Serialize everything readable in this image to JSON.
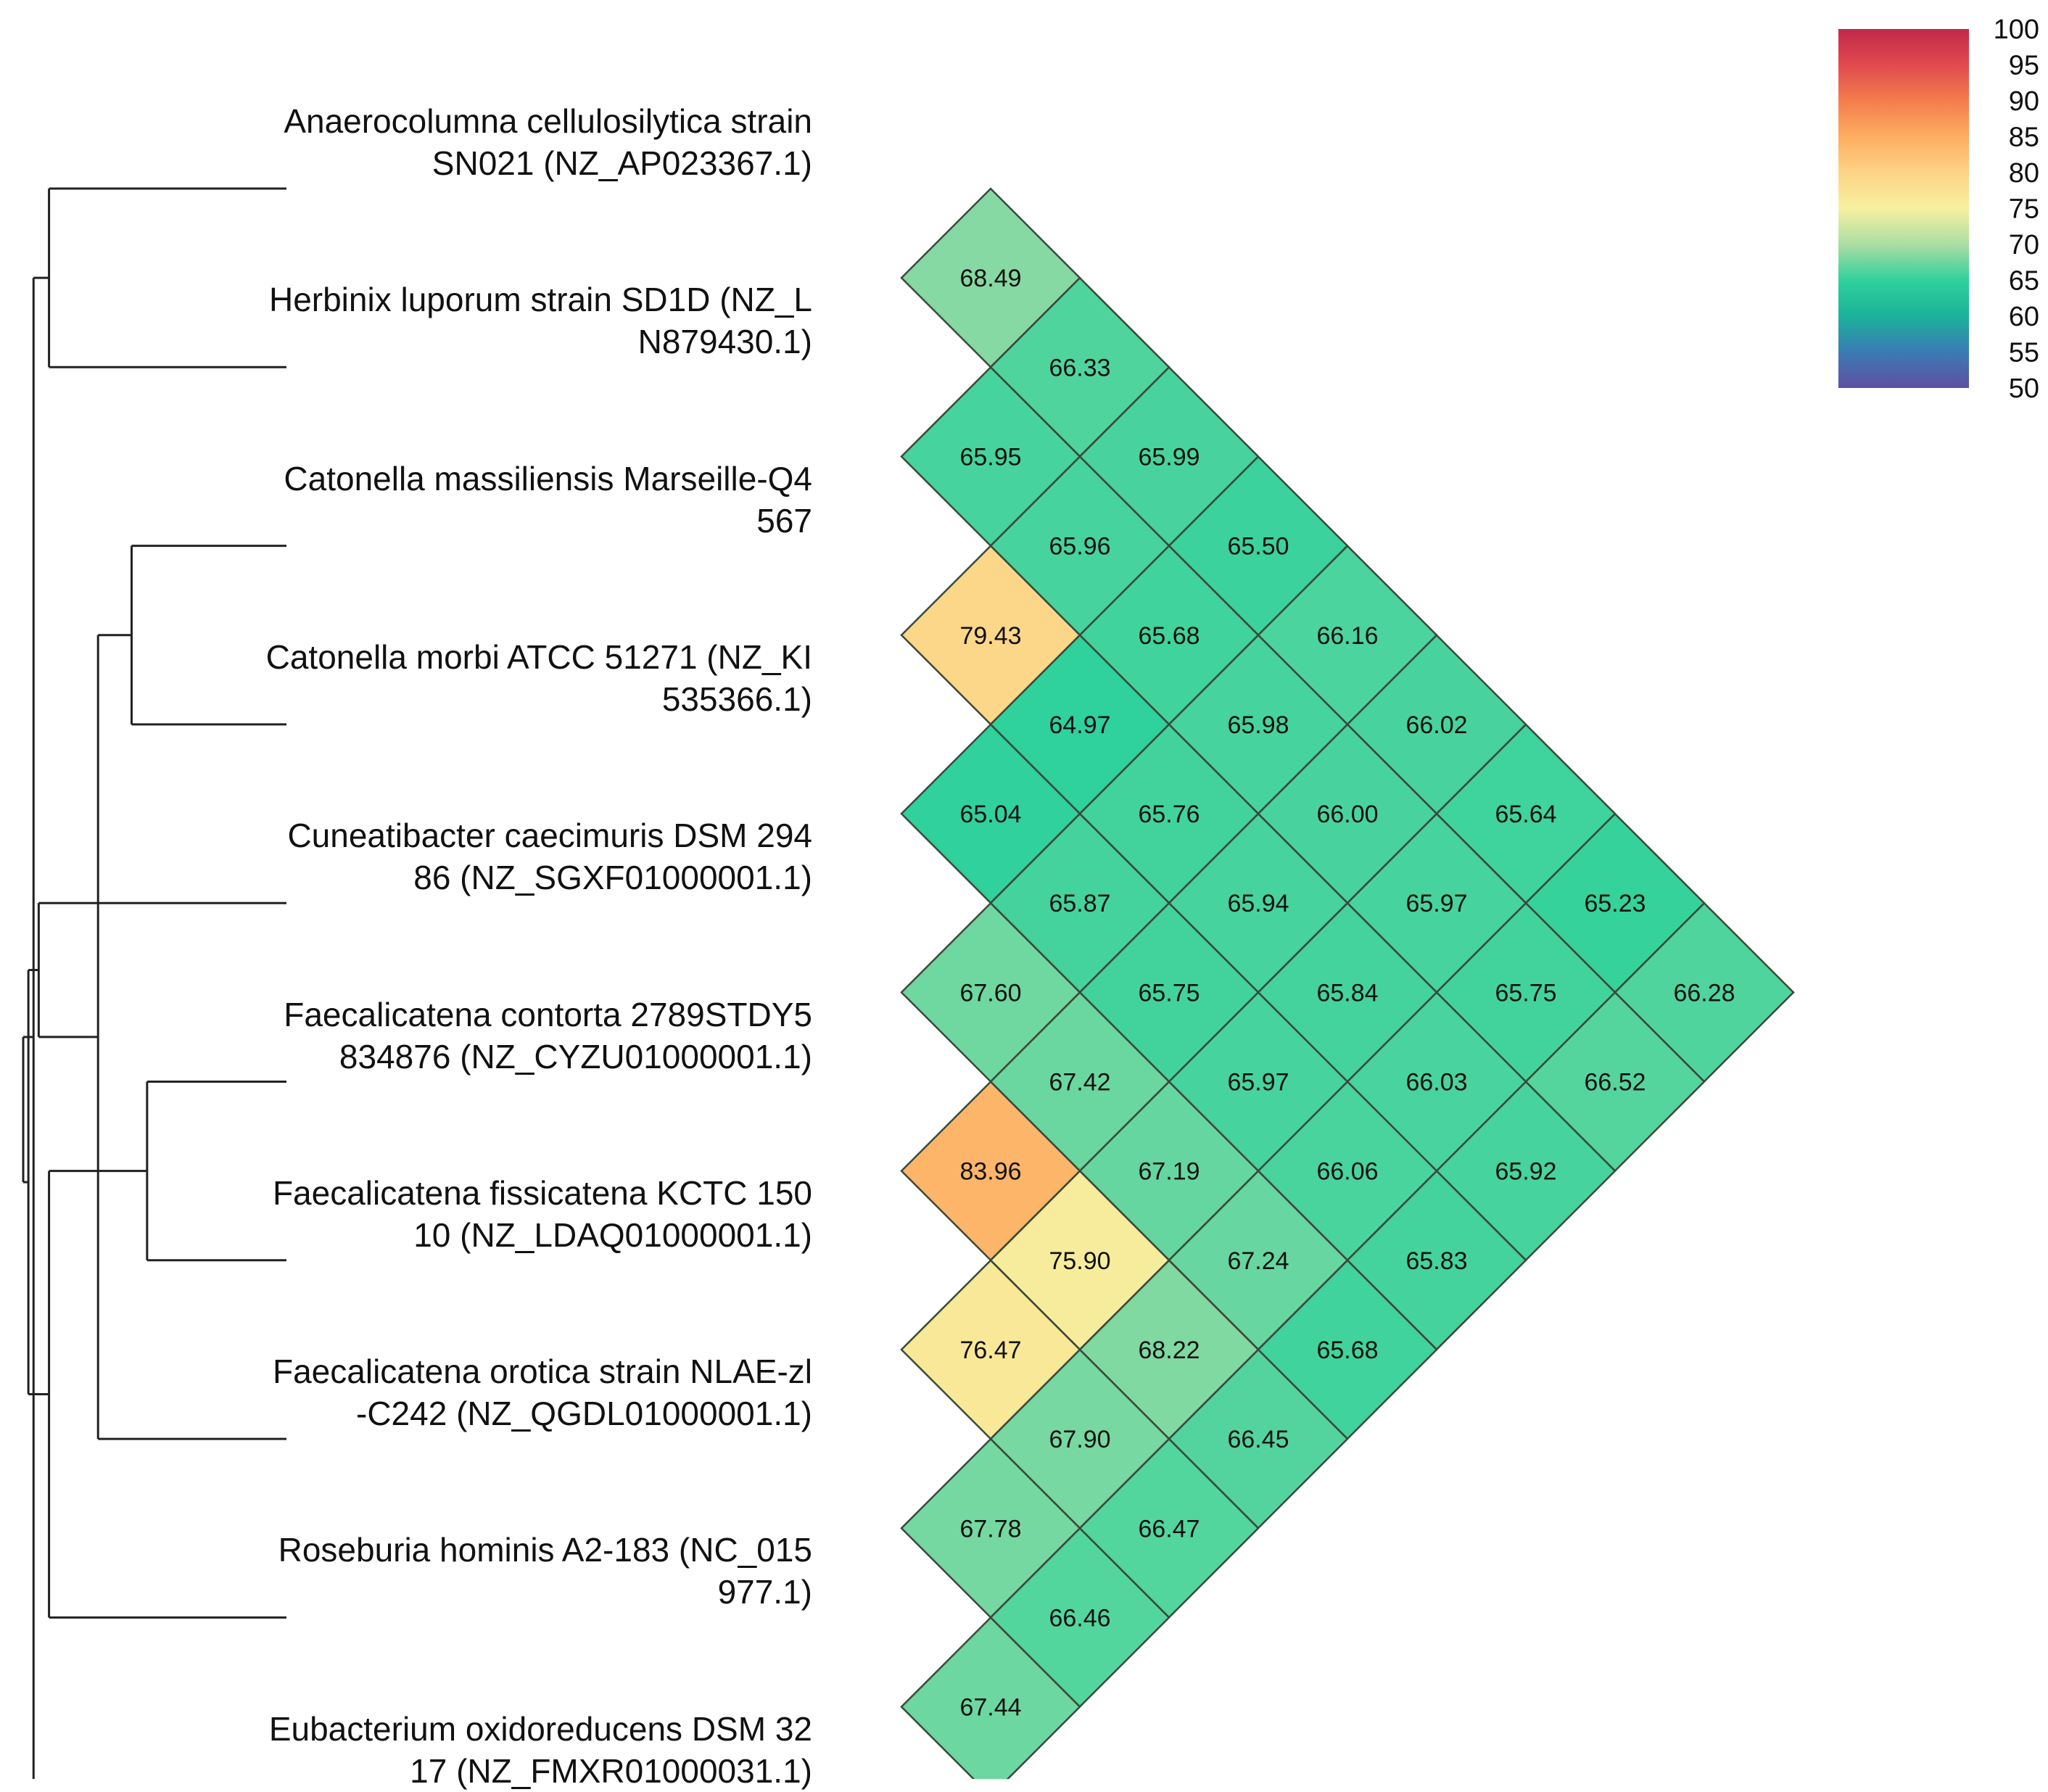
{
  "chart_data": {
    "type": "heatmap",
    "title": "",
    "layout": "triangular pairwise matrix with dendrogram",
    "taxa": [
      {
        "line1": "Anaerocolumna cellulosilytica strain",
        "line2": "SN021 (NZ_AP023367.1)"
      },
      {
        "line1": "Herbinix luporum strain SD1D (NZ_L",
        "line2": "N879430.1)"
      },
      {
        "line1": "Catonella massiliensis Marseille-Q4",
        "line2": "567"
      },
      {
        "line1": "Catonella morbi ATCC 51271 (NZ_KI",
        "line2": "535366.1)"
      },
      {
        "line1": "Cuneatibacter caecimuris DSM 294",
        "line2": "86 (NZ_SGXF01000001.1)"
      },
      {
        "line1": "Faecalicatena contorta 2789STDY5",
        "line2": "834876 (NZ_CYZU01000001.1)"
      },
      {
        "line1": "Faecalicatena fissicatena KCTC 150",
        "line2": "10 (NZ_LDAQ01000001.1)"
      },
      {
        "line1": "Faecalicatena orotica strain NLAE-zl",
        "line2": "-C242 (NZ_QGDL01000001.1)"
      },
      {
        "line1": "Roseburia hominis A2-183 (NC_015",
        "line2": "977.1)"
      },
      {
        "line1": "Eubacterium oxidoreducens DSM 32",
        "line2": "17 (NZ_FMXR01000031.1)"
      }
    ],
    "pairs": [
      {
        "i": 0,
        "j": 1,
        "value": "68.49"
      },
      {
        "i": 0,
        "j": 2,
        "value": "66.33"
      },
      {
        "i": 0,
        "j": 3,
        "value": "65.99"
      },
      {
        "i": 0,
        "j": 4,
        "value": "65.50"
      },
      {
        "i": 0,
        "j": 5,
        "value": "66.16"
      },
      {
        "i": 0,
        "j": 6,
        "value": "66.02"
      },
      {
        "i": 0,
        "j": 7,
        "value": "65.64"
      },
      {
        "i": 0,
        "j": 8,
        "value": "65.23"
      },
      {
        "i": 0,
        "j": 9,
        "value": "66.28"
      },
      {
        "i": 1,
        "j": 2,
        "value": "65.95"
      },
      {
        "i": 1,
        "j": 3,
        "value": "65.96"
      },
      {
        "i": 1,
        "j": 4,
        "value": "65.68"
      },
      {
        "i": 1,
        "j": 5,
        "value": "65.98"
      },
      {
        "i": 1,
        "j": 6,
        "value": "66.00"
      },
      {
        "i": 1,
        "j": 7,
        "value": "65.97"
      },
      {
        "i": 1,
        "j": 8,
        "value": "65.75"
      },
      {
        "i": 1,
        "j": 9,
        "value": "66.52"
      },
      {
        "i": 2,
        "j": 3,
        "value": "79.43"
      },
      {
        "i": 2,
        "j": 4,
        "value": "64.97"
      },
      {
        "i": 2,
        "j": 5,
        "value": "65.76"
      },
      {
        "i": 2,
        "j": 6,
        "value": "65.94"
      },
      {
        "i": 2,
        "j": 7,
        "value": "65.84"
      },
      {
        "i": 2,
        "j": 8,
        "value": "66.03"
      },
      {
        "i": 2,
        "j": 9,
        "value": "65.92"
      },
      {
        "i": 3,
        "j": 4,
        "value": "65.04"
      },
      {
        "i": 3,
        "j": 5,
        "value": "65.87"
      },
      {
        "i": 3,
        "j": 6,
        "value": "65.75"
      },
      {
        "i": 3,
        "j": 7,
        "value": "65.97"
      },
      {
        "i": 3,
        "j": 8,
        "value": "66.06"
      },
      {
        "i": 3,
        "j": 9,
        "value": "65.83"
      },
      {
        "i": 4,
        "j": 5,
        "value": "67.60"
      },
      {
        "i": 4,
        "j": 6,
        "value": "67.42"
      },
      {
        "i": 4,
        "j": 7,
        "value": "67.19"
      },
      {
        "i": 4,
        "j": 8,
        "value": "67.24"
      },
      {
        "i": 4,
        "j": 9,
        "value": "65.68"
      },
      {
        "i": 5,
        "j": 6,
        "value": "83.96"
      },
      {
        "i": 5,
        "j": 7,
        "value": "75.90"
      },
      {
        "i": 5,
        "j": 8,
        "value": "68.22"
      },
      {
        "i": 5,
        "j": 9,
        "value": "66.45"
      },
      {
        "i": 6,
        "j": 7,
        "value": "76.47"
      },
      {
        "i": 6,
        "j": 8,
        "value": "67.90"
      },
      {
        "i": 6,
        "j": 9,
        "value": "66.47"
      },
      {
        "i": 7,
        "j": 8,
        "value": "67.78"
      },
      {
        "i": 7,
        "j": 9,
        "value": "66.46"
      },
      {
        "i": 8,
        "j": 9,
        "value": "67.44"
      }
    ],
    "dendrogram": {
      "merges": [
        {
          "a": 0,
          "b": 1,
          "distance": 0.92
        },
        {
          "a": 2,
          "b": 3,
          "distance": 0.6
        },
        {
          "a": 5,
          "b": 6,
          "distance": 0.54
        },
        {
          "a": 7,
          "b": 11,
          "distance": 0.73
        },
        {
          "a": 8,
          "b": 12,
          "distance": 0.92
        },
        {
          "a": 4,
          "b": 13,
          "distance": 0.96
        },
        {
          "a": 10,
          "b": 9,
          "distance": 0.98
        },
        {
          "a": 14,
          "b": 15,
          "distance": 1.0
        },
        {
          "a": 16,
          "b": 17,
          "distance": 1.02
        }
      ]
    },
    "colorbar": {
      "min": 50,
      "max": 100,
      "ticks": [
        "100",
        "95",
        "90",
        "85",
        "80",
        "75",
        "70",
        "65",
        "60",
        "55",
        "50"
      ],
      "stops": [
        {
          "value": 50,
          "color": "#5e4fa2"
        },
        {
          "value": 55,
          "color": "#3a7bb5"
        },
        {
          "value": 60,
          "color": "#1cb29a"
        },
        {
          "value": 65,
          "color": "#2fd19c"
        },
        {
          "value": 70,
          "color": "#abdda4"
        },
        {
          "value": 75,
          "color": "#f6f1a0"
        },
        {
          "value": 80,
          "color": "#fdd386"
        },
        {
          "value": 85,
          "color": "#fdad61"
        },
        {
          "value": 90,
          "color": "#f47d4d"
        },
        {
          "value": 95,
          "color": "#e14a4f"
        },
        {
          "value": 100,
          "color": "#c2284a"
        }
      ]
    }
  }
}
